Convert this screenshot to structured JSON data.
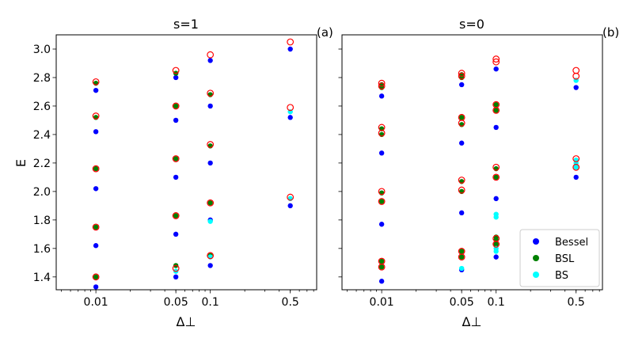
{
  "chart_data": [
    {
      "type": "scatter",
      "title": "s=1",
      "panel_label": "(a)",
      "xlabel": "Δ⊥",
      "ylabel": "E",
      "x_scale": "log",
      "xlim": [
        0.0045,
        0.85
      ],
      "ylim": [
        1.31,
        3.1
      ],
      "xticks": [
        0.01,
        0.05,
        0.1,
        0.5
      ],
      "xtick_labels": [
        "0.01",
        "0.05",
        "0.1",
        "0.5"
      ],
      "yticks": [
        1.4,
        1.6,
        1.8,
        2.0,
        2.2,
        2.4,
        2.6,
        2.8,
        3.0
      ],
      "ytick_labels": [
        "1.4",
        "1.6",
        "1.8",
        "2.0",
        "2.2",
        "2.4",
        "2.6",
        "2.8",
        "3.0"
      ],
      "series": [
        {
          "name": "Bessel",
          "color": "#0000ff",
          "marker": "filled-circle",
          "points": [
            [
              0.01,
              1.33
            ],
            [
              0.01,
              1.62
            ],
            [
              0.01,
              2.02
            ],
            [
              0.01,
              2.42
            ],
            [
              0.01,
              2.71
            ],
            [
              0.05,
              1.4
            ],
            [
              0.05,
              1.7
            ],
            [
              0.05,
              2.1
            ],
            [
              0.05,
              2.5
            ],
            [
              0.05,
              2.8
            ],
            [
              0.1,
              1.48
            ],
            [
              0.1,
              1.8
            ],
            [
              0.1,
              2.2
            ],
            [
              0.1,
              2.6
            ],
            [
              0.1,
              2.92
            ],
            [
              0.5,
              1.9
            ],
            [
              0.5,
              2.52
            ],
            [
              0.5,
              3.0
            ]
          ]
        },
        {
          "name": "BSL",
          "color": "#008000",
          "marker": "filled-circle",
          "points": [
            [
              0.01,
              1.4
            ],
            [
              0.01,
              1.75
            ],
            [
              0.01,
              2.16
            ],
            [
              0.01,
              2.52
            ],
            [
              0.01,
              2.76
            ],
            [
              0.05,
              1.48
            ],
            [
              0.05,
              1.83
            ],
            [
              0.05,
              2.23
            ],
            [
              0.05,
              2.6
            ],
            [
              0.05,
              2.83
            ],
            [
              0.1,
              1.55
            ],
            [
              0.1,
              1.92
            ],
            [
              0.1,
              2.32
            ],
            [
              0.1,
              2.68
            ]
          ]
        },
        {
          "name": "BS",
          "color": "#00ffff",
          "marker": "filled-circle",
          "points": [
            [
              0.05,
              1.44
            ],
            [
              0.1,
              1.54
            ],
            [
              0.1,
              1.79
            ],
            [
              0.5,
              1.95
            ],
            [
              0.5,
              2.56
            ]
          ]
        },
        {
          "name": "",
          "color": "#ff0000",
          "marker": "open-circle",
          "points": [
            [
              0.01,
              1.4
            ],
            [
              0.01,
              1.75
            ],
            [
              0.01,
              2.16
            ],
            [
              0.01,
              2.53
            ],
            [
              0.01,
              2.77
            ],
            [
              0.05,
              1.46
            ],
            [
              0.05,
              1.83
            ],
            [
              0.05,
              2.23
            ],
            [
              0.05,
              2.6
            ],
            [
              0.05,
              2.85
            ],
            [
              0.1,
              1.55
            ],
            [
              0.1,
              1.92
            ],
            [
              0.1,
              2.33
            ],
            [
              0.1,
              2.69
            ],
            [
              0.1,
              2.96
            ],
            [
              0.5,
              1.96
            ],
            [
              0.5,
              2.59
            ],
            [
              0.5,
              3.05
            ]
          ]
        }
      ]
    },
    {
      "type": "scatter",
      "title": "s=0",
      "panel_label": "(b)",
      "xlabel": "Δ⊥",
      "ylabel": "",
      "x_scale": "log",
      "xlim": [
        0.0045,
        0.85
      ],
      "ylim": [
        1.31,
        3.1
      ],
      "xticks": [
        0.01,
        0.05,
        0.1,
        0.5
      ],
      "xtick_labels": [
        "0.01",
        "0.05",
        "0.1",
        "0.5"
      ],
      "legend_position": "lower right",
      "series": [
        {
          "name": "Bessel",
          "color": "#0000ff",
          "marker": "filled-circle",
          "points": [
            [
              0.01,
              1.37
            ],
            [
              0.01,
              1.77
            ],
            [
              0.01,
              2.27
            ],
            [
              0.01,
              2.67
            ],
            [
              0.05,
              1.45
            ],
            [
              0.05,
              1.85
            ],
            [
              0.05,
              2.34
            ],
            [
              0.05,
              2.75
            ],
            [
              0.1,
              1.54
            ],
            [
              0.1,
              1.95
            ],
            [
              0.1,
              2.45
            ],
            [
              0.1,
              2.86
            ],
            [
              0.5,
              2.1
            ],
            [
              0.5,
              2.73
            ]
          ]
        },
        {
          "name": "BSL",
          "color": "#008000",
          "marker": "filled-circle",
          "points": [
            [
              0.01,
              1.47
            ],
            [
              0.01,
              1.51
            ],
            [
              0.01,
              1.93
            ],
            [
              0.01,
              1.99
            ],
            [
              0.01,
              2.4
            ],
            [
              0.01,
              2.44
            ],
            [
              0.01,
              2.73
            ],
            [
              0.01,
              2.75
            ],
            [
              0.05,
              1.54
            ],
            [
              0.05,
              1.58
            ],
            [
              0.05,
              2.0
            ],
            [
              0.05,
              2.07
            ],
            [
              0.05,
              2.47
            ],
            [
              0.05,
              2.52
            ],
            [
              0.05,
              2.8
            ],
            [
              0.05,
              2.82
            ],
            [
              0.1,
              1.63
            ],
            [
              0.1,
              1.66
            ],
            [
              0.1,
              1.68
            ],
            [
              0.1,
              2.1
            ],
            [
              0.1,
              2.16
            ],
            [
              0.1,
              2.57
            ],
            [
              0.1,
              2.61
            ]
          ]
        },
        {
          "name": "BS",
          "color": "#00ffff",
          "marker": "filled-circle",
          "points": [
            [
              0.05,
              1.46
            ],
            [
              0.1,
              1.58
            ],
            [
              0.1,
              1.6
            ],
            [
              0.1,
              1.82
            ],
            [
              0.1,
              1.84
            ],
            [
              0.5,
              2.17
            ],
            [
              0.5,
              2.2
            ],
            [
              0.5,
              2.22
            ],
            [
              0.5,
              2.78
            ]
          ]
        },
        {
          "name": "",
          "color": "#ff0000",
          "marker": "open-circle",
          "points": [
            [
              0.01,
              1.47
            ],
            [
              0.01,
              1.51
            ],
            [
              0.01,
              1.93
            ],
            [
              0.01,
              2.0
            ],
            [
              0.01,
              2.41
            ],
            [
              0.01,
              2.45
            ],
            [
              0.01,
              2.74
            ],
            [
              0.01,
              2.76
            ],
            [
              0.05,
              1.54
            ],
            [
              0.05,
              1.58
            ],
            [
              0.05,
              2.01
            ],
            [
              0.05,
              2.08
            ],
            [
              0.05,
              2.48
            ],
            [
              0.05,
              2.52
            ],
            [
              0.05,
              2.81
            ],
            [
              0.05,
              2.83
            ],
            [
              0.1,
              1.63
            ],
            [
              0.1,
              1.67
            ],
            [
              0.1,
              2.1
            ],
            [
              0.1,
              2.17
            ],
            [
              0.1,
              2.57
            ],
            [
              0.1,
              2.61
            ],
            [
              0.1,
              2.91
            ],
            [
              0.1,
              2.93
            ],
            [
              0.5,
              2.17
            ],
            [
              0.5,
              2.23
            ],
            [
              0.5,
              2.81
            ],
            [
              0.5,
              2.85
            ]
          ]
        }
      ]
    }
  ],
  "legend": {
    "items": [
      {
        "label": "Bessel",
        "color": "#0000ff"
      },
      {
        "label": "BSL",
        "color": "#008000"
      },
      {
        "label": "BS",
        "color": "#00ffff"
      }
    ]
  }
}
